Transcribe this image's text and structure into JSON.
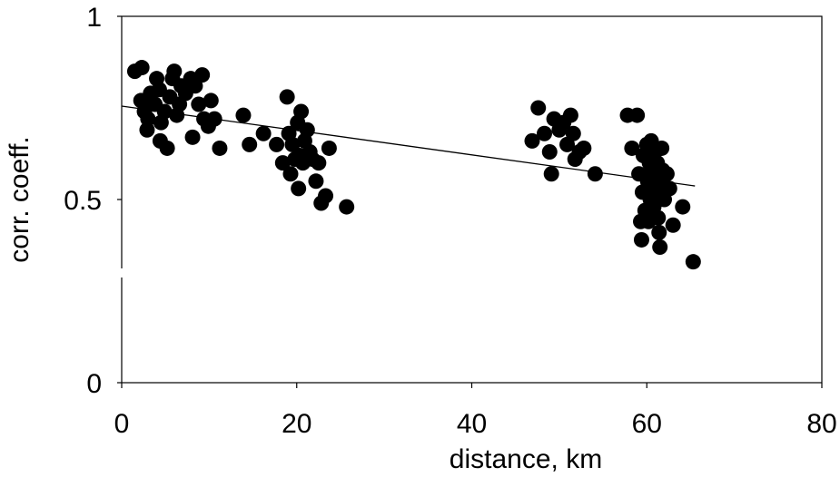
{
  "chart_data": {
    "type": "scatter",
    "title": "",
    "xlabel": "distance, km",
    "ylabel": "corr. coeff.",
    "xlim": [
      0,
      80
    ],
    "ylim": [
      0,
      1
    ],
    "x_ticks": [
      "0",
      "20",
      "40",
      "60",
      "80"
    ],
    "y_ticks": [
      "0",
      "0.5",
      "1"
    ],
    "grid": false,
    "marker_color": "#000000",
    "series": [
      {
        "points": [
          [
            1.5,
            0.85
          ],
          [
            2.3,
            0.86
          ],
          [
            2.2,
            0.77
          ],
          [
            2.6,
            0.74
          ],
          [
            3.0,
            0.72
          ],
          [
            2.9,
            0.69
          ],
          [
            3.3,
            0.79
          ],
          [
            3.8,
            0.76
          ],
          [
            4.0,
            0.83
          ],
          [
            4.3,
            0.8
          ],
          [
            4.5,
            0.71
          ],
          [
            4.4,
            0.66
          ],
          [
            4.9,
            0.74
          ],
          [
            5.2,
            0.64
          ],
          [
            5.5,
            0.78
          ],
          [
            5.8,
            0.83
          ],
          [
            6.0,
            0.85
          ],
          [
            6.3,
            0.73
          ],
          [
            6.6,
            0.76
          ],
          [
            6.8,
            0.81
          ],
          [
            7.3,
            0.79
          ],
          [
            7.9,
            0.83
          ],
          [
            8.1,
            0.67
          ],
          [
            8.4,
            0.81
          ],
          [
            8.8,
            0.76
          ],
          [
            9.2,
            0.84
          ],
          [
            9.4,
            0.72
          ],
          [
            9.9,
            0.7
          ],
          [
            10.2,
            0.77
          ],
          [
            10.6,
            0.72
          ],
          [
            11.2,
            0.64
          ],
          [
            13.9,
            0.73
          ],
          [
            14.6,
            0.65
          ],
          [
            16.2,
            0.68
          ],
          [
            17.7,
            0.65
          ],
          [
            18.4,
            0.6
          ],
          [
            18.9,
            0.78
          ],
          [
            19.1,
            0.68
          ],
          [
            19.3,
            0.57
          ],
          [
            19.5,
            0.65
          ],
          [
            19.8,
            0.61
          ],
          [
            20.1,
            0.71
          ],
          [
            20.3,
            0.62
          ],
          [
            20.5,
            0.74
          ],
          [
            20.2,
            0.53
          ],
          [
            20.7,
            0.6
          ],
          [
            20.9,
            0.66
          ],
          [
            21.2,
            0.69
          ],
          [
            21.5,
            0.63
          ],
          [
            21.8,
            0.61
          ],
          [
            22.2,
            0.55
          ],
          [
            22.5,
            0.6
          ],
          [
            22.8,
            0.49
          ],
          [
            23.3,
            0.51
          ],
          [
            23.7,
            0.64
          ],
          [
            25.7,
            0.48
          ],
          [
            46.9,
            0.66
          ],
          [
            47.6,
            0.75
          ],
          [
            48.3,
            0.68
          ],
          [
            48.9,
            0.63
          ],
          [
            49.1,
            0.57
          ],
          [
            49.4,
            0.72
          ],
          [
            50.0,
            0.69
          ],
          [
            50.5,
            0.71
          ],
          [
            50.9,
            0.65
          ],
          [
            51.3,
            0.73
          ],
          [
            51.6,
            0.68
          ],
          [
            51.8,
            0.61
          ],
          [
            52.3,
            0.63
          ],
          [
            52.8,
            0.64
          ],
          [
            54.1,
            0.57
          ],
          [
            57.8,
            0.73
          ],
          [
            58.3,
            0.64
          ],
          [
            58.9,
            0.73
          ],
          [
            59.1,
            0.57
          ],
          [
            59.3,
            0.44
          ],
          [
            59.4,
            0.39
          ],
          [
            59.5,
            0.52
          ],
          [
            59.6,
            0.62
          ],
          [
            59.8,
            0.47
          ],
          [
            60.0,
            0.65
          ],
          [
            60.1,
            0.55
          ],
          [
            60.2,
            0.44
          ],
          [
            60.3,
            0.6
          ],
          [
            60.4,
            0.5
          ],
          [
            60.5,
            0.66
          ],
          [
            60.6,
            0.58
          ],
          [
            60.7,
            0.53
          ],
          [
            60.8,
            0.48
          ],
          [
            60.9,
            0.63
          ],
          [
            61.0,
            0.56
          ],
          [
            61.1,
            0.51
          ],
          [
            61.2,
            0.6
          ],
          [
            61.3,
            0.45
          ],
          [
            61.4,
            0.41
          ],
          [
            61.5,
            0.37
          ],
          [
            61.6,
            0.54
          ],
          [
            61.7,
            0.64
          ],
          [
            61.8,
            0.58
          ],
          [
            62.0,
            0.5
          ],
          [
            62.3,
            0.57
          ],
          [
            62.6,
            0.53
          ],
          [
            63.0,
            0.43
          ],
          [
            64.1,
            0.48
          ],
          [
            65.3,
            0.33
          ]
        ]
      }
    ],
    "trendline": {
      "x": [
        0,
        65.5
      ],
      "y": [
        0.755,
        0.537
      ]
    }
  }
}
